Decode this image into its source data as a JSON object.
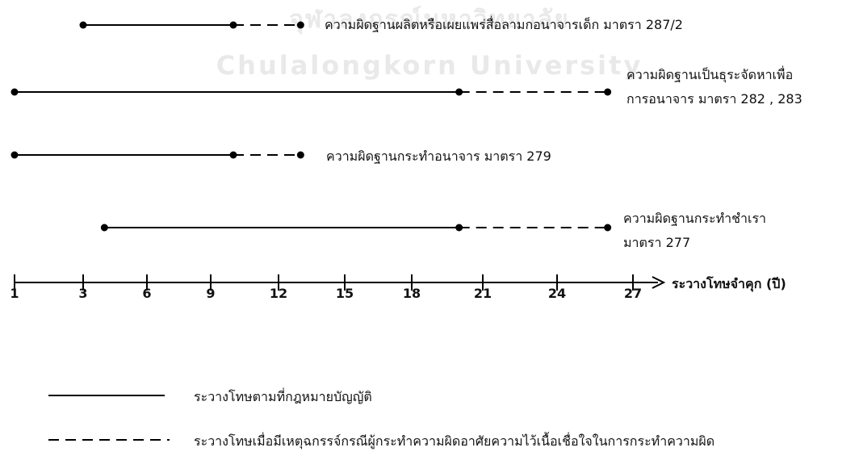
{
  "watermark": {
    "thai": "จุฬาลงกรณ์มหาวิทยาลัย",
    "english": "Chulalongkorn University"
  },
  "axis": {
    "title": "ระวางโทษจำคุก (ปี)",
    "ticks": [
      "1",
      "3",
      "6",
      "9",
      "12",
      "15",
      "18",
      "21",
      "24",
      "27"
    ]
  },
  "offenses": [
    {
      "label_lines": [
        "ความผิดฐานผลิตหรือเผยแพร่สื่อลามกอนาจารเด็ก มาตรา 287/2"
      ],
      "statutory": [
        3,
        10
      ],
      "aggravated_to": 13
    },
    {
      "label_lines": [
        "ความผิดฐานเป็นธุระจัดหาเพื่อ",
        "การอนาจาร มาตรา 282 , 283"
      ],
      "statutory": [
        1,
        20
      ],
      "aggravated_to": 26
    },
    {
      "label_lines": [
        "ความผิดฐานกระทำอนาจาร มาตรา 279"
      ],
      "statutory": [
        1,
        10
      ],
      "aggravated_to": 13
    },
    {
      "label_lines": [
        "ความผิดฐานกระทำชำเรา",
        "มาตรา 277"
      ],
      "statutory": [
        4,
        20
      ],
      "aggravated_to": 26
    }
  ],
  "legend": {
    "solid": "ระวางโทษตามที่กฎหมายบัญญัติ",
    "dashed": "ระวางโทษเมื่อมีเหตุฉกรรจ์กรณีผู้กระทำความผิดอาศัยความไว้เนื้อเชื่อใจในการกระทำความผิด"
  }
}
